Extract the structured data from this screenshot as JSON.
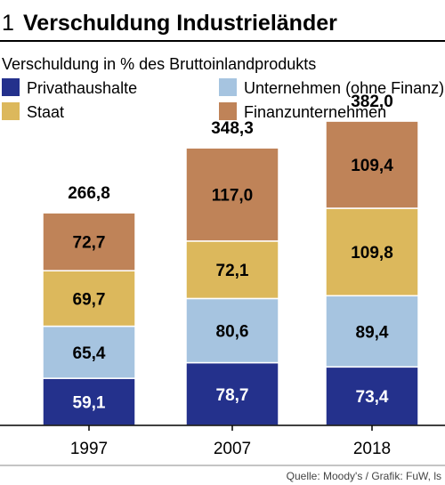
{
  "chart_number": "1",
  "chart_data": {
    "type": "bar",
    "stacked": true,
    "title": "Verschuldung Industrieländer",
    "subtitle": "Verschuldung in % des Bruttoinlandprodukts",
    "source": "Quelle: Moody's / Grafik: FuW, ls",
    "categories": [
      "1997",
      "2007",
      "2018"
    ],
    "totals": [
      "266,8",
      "348,3",
      "382,0"
    ],
    "series": [
      {
        "name": "Privathaushalte",
        "color": "#24318c",
        "text_color": "#ffffff",
        "values": [
          59.1,
          78.7,
          73.4
        ],
        "labels": [
          "59,1",
          "78,7",
          "73,4"
        ]
      },
      {
        "name": "Unternehmen (ohne Finanz)",
        "color": "#a6c4e0",
        "text_color": "#000000",
        "values": [
          65.4,
          80.6,
          89.4
        ],
        "labels": [
          "65,4",
          "80,6",
          "89,4"
        ]
      },
      {
        "name": "Staat",
        "color": "#dcb85c",
        "text_color": "#000000",
        "values": [
          69.7,
          72.1,
          109.8
        ],
        "labels": [
          "69,7",
          "72,1",
          "109,8"
        ]
      },
      {
        "name": "Finanzunternehmen",
        "color": "#bf8358",
        "text_color": "#000000",
        "values": [
          72.7,
          117.0,
          109.4
        ],
        "labels": [
          "72,7",
          "117,0",
          "109,4"
        ]
      }
    ],
    "legend_order": [
      "Privathaushalte",
      "Unternehmen (ohne Finanz)",
      "Staat",
      "Finanzunternehmen"
    ],
    "ylim": [
      0,
      400
    ],
    "grid": false,
    "legend_placement": "top"
  }
}
